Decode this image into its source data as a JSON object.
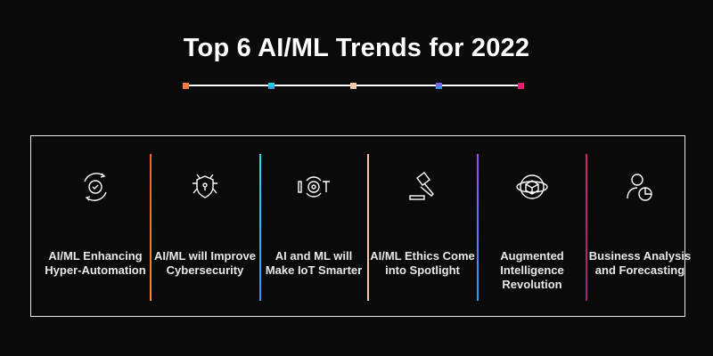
{
  "title": "Top 6 AI/ML Trends for 2022",
  "colors": [
    "#ff7a3d",
    "#1ec8f0",
    "#f7c6ad",
    "#8a5cf0",
    "#e0206a"
  ],
  "trends": [
    {
      "label": "AI/ML Enhancing Hyper-Automation",
      "icon": "automation-gear-icon"
    },
    {
      "label": "AI/ML will Improve Cybersecurity",
      "icon": "shield-network-icon"
    },
    {
      "label": "AI and ML will Make IoT Smarter",
      "icon": "iot-icon"
    },
    {
      "label": "AI/ML Ethics Come into Spotlight",
      "icon": "gavel-icon"
    },
    {
      "label": "Augmented Intelligence Revolution",
      "icon": "ar-cube-icon"
    },
    {
      "label": "Business Analysis and Forecasting",
      "icon": "user-chart-icon"
    }
  ]
}
